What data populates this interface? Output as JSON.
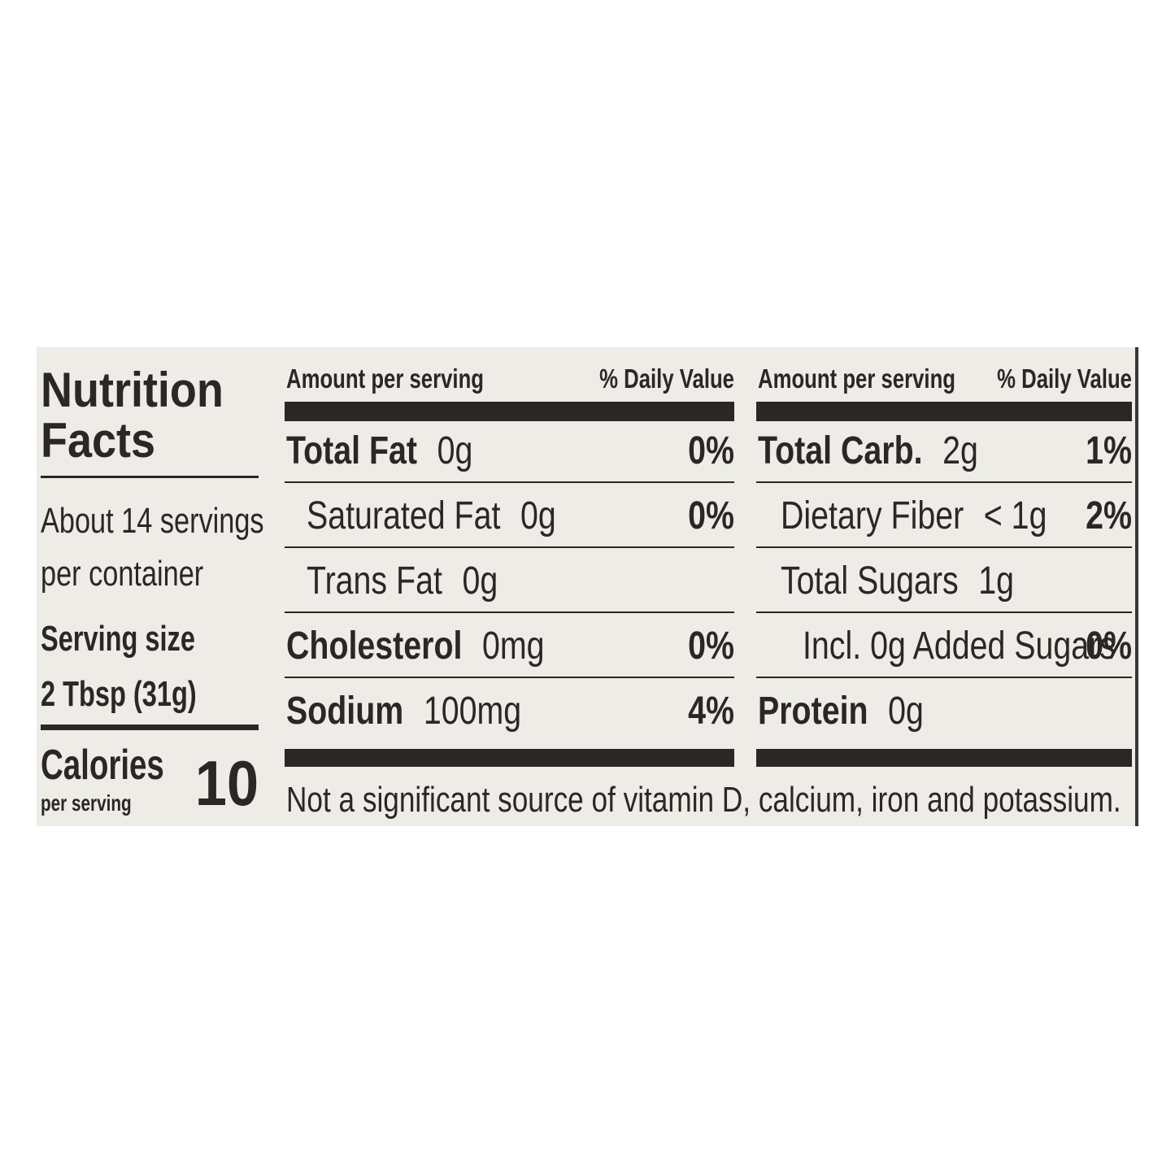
{
  "panel": {
    "title_line1": "Nutrition",
    "title_line2": "Facts",
    "servings_line1": "About 14 servings",
    "servings_line2": "per container",
    "serving_size_label": "Serving size",
    "serving_size_value": "2 Tbsp (31g)",
    "calories_label": "Calories",
    "calories_sub": "per serving",
    "calories_value": "10"
  },
  "left_table": {
    "header": [
      "Amount per serving",
      "% Daily Value"
    ],
    "rows": [
      {
        "name": "Total Fat",
        "amount": "0g",
        "dv": "0%"
      },
      {
        "name": "Saturated Fat",
        "amount": "0g",
        "dv": "0%"
      },
      {
        "name": "Trans Fat",
        "amount": "0g"
      },
      {
        "name": "Cholesterol",
        "amount": "0mg",
        "dv": "0%"
      },
      {
        "name": "Sodium",
        "amount": "100mg",
        "dv": "4%"
      }
    ]
  },
  "right_table": {
    "header": [
      "Amount per serving",
      "% Daily Value"
    ],
    "rows": [
      {
        "name": "Total Carb.",
        "amount": "2g",
        "dv": "1%"
      },
      {
        "name": "Dietary Fiber",
        "amount": "< 1g",
        "dv": "2%"
      },
      {
        "name": "Total Sugars",
        "amount": "1g"
      },
      {
        "name": "Incl. 0g Added Sugars",
        "dv": "0%"
      },
      {
        "name": "Protein",
        "amount": "0g"
      }
    ]
  },
  "footnote": "Not a significant source of vitamin D, calcium, iron and potassium."
}
